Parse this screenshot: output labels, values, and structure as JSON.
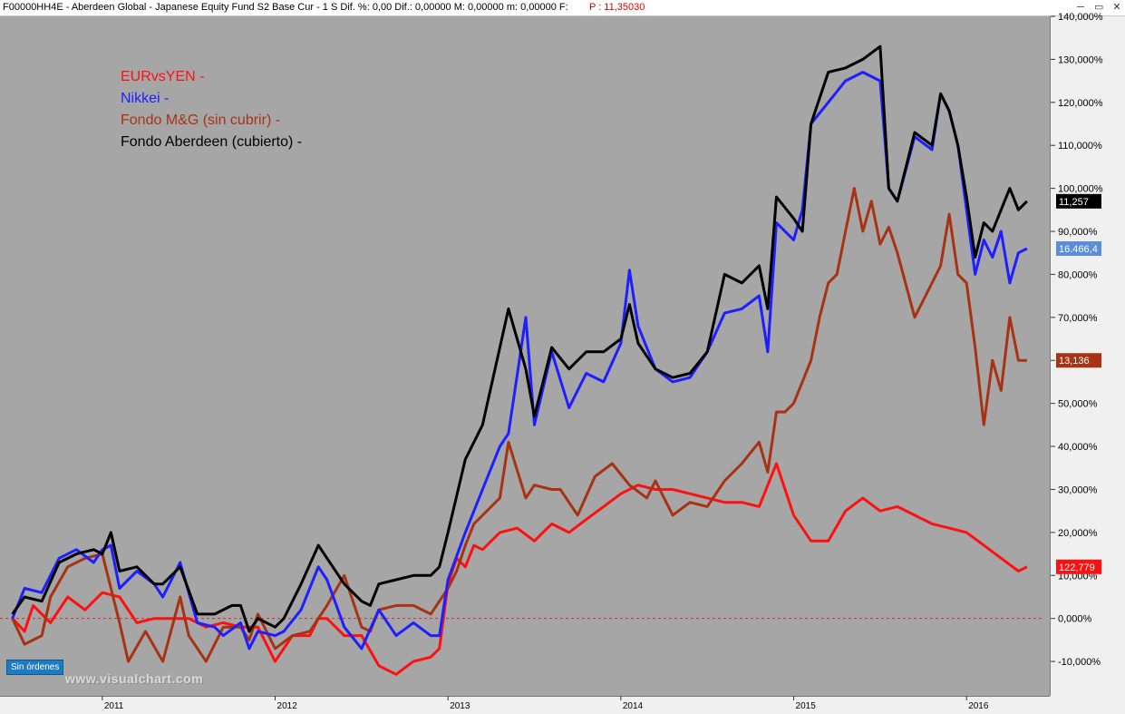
{
  "window": {
    "title": "F00000HH4E - Aberdeen Global - Japanese Equity Fund S2 Base Cur -  1 S  Dif. %: 0,00   Dif.: 0,00000   M: 0,00000   m: 0,00000   F:",
    "price_label": "P : 11,35030",
    "controls": [
      "─",
      "▭",
      "✕"
    ]
  },
  "chart_data": {
    "type": "line",
    "title": "",
    "xlabel": "",
    "ylabel": "",
    "ylim": [
      -18,
      140
    ],
    "y_ticks": [
      -10,
      0,
      10,
      20,
      30,
      40,
      50,
      60,
      70,
      80,
      90,
      100,
      110,
      120,
      130,
      140
    ],
    "y_tick_labels": [
      "-10,000%",
      "0,000%",
      "10,000%",
      "20,000%",
      "30,000%",
      "40,000%",
      "50,000%",
      "60,000%",
      "70,000%",
      "80,000%",
      "90,000%",
      "100,000%",
      "110,000%",
      "120,000%",
      "130,000%",
      "140,000%"
    ],
    "xlim": [
      2010.45,
      2016.45
    ],
    "x_ticks": [
      2011,
      2012,
      2013,
      2014,
      2015,
      2016
    ],
    "x_tick_labels": [
      "2011",
      "2012",
      "2013",
      "2014",
      "2015",
      "2016"
    ],
    "zero_line_color": "#d03030",
    "grid": false,
    "legend_position": "top-left",
    "series": [
      {
        "name": "EURvsYEN -",
        "color": "#ff1010",
        "end_label": "122,779",
        "points": [
          [
            2010.48,
            0
          ],
          [
            2010.55,
            -3
          ],
          [
            2010.6,
            3
          ],
          [
            2010.7,
            -1
          ],
          [
            2010.8,
            5
          ],
          [
            2010.9,
            2
          ],
          [
            2011.0,
            6
          ],
          [
            2011.1,
            5
          ],
          [
            2011.2,
            -1
          ],
          [
            2011.3,
            0
          ],
          [
            2011.4,
            0
          ],
          [
            2011.5,
            0
          ],
          [
            2011.6,
            -2
          ],
          [
            2011.7,
            -1
          ],
          [
            2011.8,
            -2
          ],
          [
            2011.9,
            -2
          ],
          [
            2012.0,
            -10
          ],
          [
            2012.1,
            -4
          ],
          [
            2012.2,
            -4
          ],
          [
            2012.25,
            0
          ],
          [
            2012.3,
            0
          ],
          [
            2012.4,
            -4
          ],
          [
            2012.5,
            -4
          ],
          [
            2012.6,
            -11
          ],
          [
            2012.7,
            -13
          ],
          [
            2012.8,
            -10
          ],
          [
            2012.9,
            -9
          ],
          [
            2012.95,
            -7
          ],
          [
            2013.0,
            8
          ],
          [
            2013.05,
            14
          ],
          [
            2013.1,
            12
          ],
          [
            2013.15,
            17
          ],
          [
            2013.2,
            16
          ],
          [
            2013.3,
            20
          ],
          [
            2013.4,
            21
          ],
          [
            2013.5,
            18
          ],
          [
            2013.6,
            22
          ],
          [
            2013.7,
            20
          ],
          [
            2013.8,
            23
          ],
          [
            2013.9,
            26
          ],
          [
            2014.0,
            29
          ],
          [
            2014.1,
            31
          ],
          [
            2014.2,
            30
          ],
          [
            2014.3,
            30
          ],
          [
            2014.4,
            29
          ],
          [
            2014.5,
            28
          ],
          [
            2014.6,
            27
          ],
          [
            2014.7,
            27
          ],
          [
            2014.8,
            26
          ],
          [
            2014.9,
            36
          ],
          [
            2015.0,
            24
          ],
          [
            2015.1,
            18
          ],
          [
            2015.2,
            18
          ],
          [
            2015.3,
            25
          ],
          [
            2015.4,
            28
          ],
          [
            2015.5,
            25
          ],
          [
            2015.6,
            26
          ],
          [
            2015.7,
            24
          ],
          [
            2015.8,
            22
          ],
          [
            2015.9,
            21
          ],
          [
            2016.0,
            20
          ],
          [
            2016.1,
            17
          ],
          [
            2016.2,
            14
          ],
          [
            2016.3,
            11
          ],
          [
            2016.35,
            12
          ]
        ]
      },
      {
        "name": "Nikkei -",
        "color": "#1e1eff",
        "end_label": "16.466,4",
        "points": [
          [
            2010.48,
            0
          ],
          [
            2010.55,
            7
          ],
          [
            2010.65,
            6
          ],
          [
            2010.75,
            14
          ],
          [
            2010.85,
            16
          ],
          [
            2010.95,
            13
          ],
          [
            2011.0,
            16
          ],
          [
            2011.05,
            17
          ],
          [
            2011.1,
            7
          ],
          [
            2011.2,
            11
          ],
          [
            2011.3,
            8
          ],
          [
            2011.35,
            5
          ],
          [
            2011.45,
            13
          ],
          [
            2011.55,
            -1
          ],
          [
            2011.65,
            -2
          ],
          [
            2011.7,
            -4
          ],
          [
            2011.8,
            -1
          ],
          [
            2011.85,
            -7
          ],
          [
            2011.9,
            -3
          ],
          [
            2012.0,
            -4
          ],
          [
            2012.05,
            -3
          ],
          [
            2012.15,
            2
          ],
          [
            2012.25,
            12
          ],
          [
            2012.3,
            9
          ],
          [
            2012.4,
            -2
          ],
          [
            2012.5,
            -7
          ],
          [
            2012.6,
            2
          ],
          [
            2012.7,
            -4
          ],
          [
            2012.8,
            -1
          ],
          [
            2012.9,
            -4
          ],
          [
            2012.95,
            -4
          ],
          [
            2013.0,
            9
          ],
          [
            2013.1,
            20
          ],
          [
            2013.2,
            30
          ],
          [
            2013.3,
            40
          ],
          [
            2013.35,
            43
          ],
          [
            2013.45,
            70
          ],
          [
            2013.5,
            45
          ],
          [
            2013.6,
            62
          ],
          [
            2013.7,
            49
          ],
          [
            2013.8,
            57
          ],
          [
            2013.9,
            55
          ],
          [
            2014.0,
            64
          ],
          [
            2014.05,
            81
          ],
          [
            2014.1,
            68
          ],
          [
            2014.2,
            58
          ],
          [
            2014.3,
            55
          ],
          [
            2014.4,
            56
          ],
          [
            2014.5,
            62
          ],
          [
            2014.6,
            71
          ],
          [
            2014.7,
            72
          ],
          [
            2014.8,
            75
          ],
          [
            2014.85,
            62
          ],
          [
            2014.9,
            92
          ],
          [
            2015.0,
            88
          ],
          [
            2015.05,
            95
          ],
          [
            2015.1,
            115
          ],
          [
            2015.2,
            120
          ],
          [
            2015.3,
            125
          ],
          [
            2015.4,
            127
          ],
          [
            2015.5,
            125
          ],
          [
            2015.55,
            100
          ],
          [
            2015.6,
            97
          ],
          [
            2015.7,
            112
          ],
          [
            2015.8,
            109
          ],
          [
            2015.85,
            122
          ],
          [
            2015.9,
            118
          ],
          [
            2015.95,
            110
          ],
          [
            2016.0,
            95
          ],
          [
            2016.05,
            80
          ],
          [
            2016.1,
            88
          ],
          [
            2016.15,
            84
          ],
          [
            2016.2,
            90
          ],
          [
            2016.25,
            78
          ],
          [
            2016.3,
            85
          ],
          [
            2016.35,
            86
          ]
        ]
      },
      {
        "name": "Fondo M&G (sin cubrir) -",
        "color": "#a83214",
        "end_label": "13,136",
        "points": [
          [
            2010.48,
            0
          ],
          [
            2010.55,
            -6
          ],
          [
            2010.65,
            -4
          ],
          [
            2010.7,
            5
          ],
          [
            2010.8,
            12
          ],
          [
            2010.9,
            14
          ],
          [
            2011.0,
            15
          ],
          [
            2011.1,
            -1
          ],
          [
            2011.15,
            -10
          ],
          [
            2011.25,
            -3
          ],
          [
            2011.35,
            -10
          ],
          [
            2011.45,
            5
          ],
          [
            2011.5,
            -4
          ],
          [
            2011.6,
            -10
          ],
          [
            2011.7,
            -2
          ],
          [
            2011.8,
            -2
          ],
          [
            2011.85,
            -5
          ],
          [
            2011.9,
            1
          ],
          [
            2012.0,
            -7
          ],
          [
            2012.1,
            -4
          ],
          [
            2012.2,
            -3
          ],
          [
            2012.3,
            3
          ],
          [
            2012.4,
            10
          ],
          [
            2012.5,
            -2
          ],
          [
            2012.55,
            -3
          ],
          [
            2012.6,
            2
          ],
          [
            2012.7,
            3
          ],
          [
            2012.8,
            3
          ],
          [
            2012.9,
            1
          ],
          [
            2013.0,
            7
          ],
          [
            2013.05,
            11
          ],
          [
            2013.1,
            17
          ],
          [
            2013.15,
            22
          ],
          [
            2013.3,
            28
          ],
          [
            2013.35,
            41
          ],
          [
            2013.45,
            28
          ],
          [
            2013.5,
            31
          ],
          [
            2013.6,
            30
          ],
          [
            2013.65,
            30
          ],
          [
            2013.75,
            24
          ],
          [
            2013.85,
            33
          ],
          [
            2013.95,
            36
          ],
          [
            2014.05,
            31
          ],
          [
            2014.15,
            28
          ],
          [
            2014.2,
            32
          ],
          [
            2014.3,
            24
          ],
          [
            2014.4,
            27
          ],
          [
            2014.5,
            26
          ],
          [
            2014.6,
            32
          ],
          [
            2014.7,
            36
          ],
          [
            2014.8,
            41
          ],
          [
            2014.85,
            34
          ],
          [
            2014.9,
            48
          ],
          [
            2014.95,
            48
          ],
          [
            2015.0,
            50
          ],
          [
            2015.05,
            55
          ],
          [
            2015.1,
            60
          ],
          [
            2015.15,
            70
          ],
          [
            2015.2,
            78
          ],
          [
            2015.25,
            80
          ],
          [
            2015.3,
            90
          ],
          [
            2015.35,
            100
          ],
          [
            2015.4,
            90
          ],
          [
            2015.45,
            97
          ],
          [
            2015.5,
            87
          ],
          [
            2015.55,
            91
          ],
          [
            2015.6,
            85
          ],
          [
            2015.7,
            70
          ],
          [
            2015.8,
            78
          ],
          [
            2015.85,
            82
          ],
          [
            2015.9,
            94
          ],
          [
            2015.95,
            80
          ],
          [
            2016.0,
            78
          ],
          [
            2016.05,
            63
          ],
          [
            2016.1,
            45
          ],
          [
            2016.15,
            60
          ],
          [
            2016.2,
            53
          ],
          [
            2016.25,
            70
          ],
          [
            2016.3,
            60
          ],
          [
            2016.35,
            60
          ]
        ]
      },
      {
        "name": "Fondo Aberdeen (cubierto) -",
        "color": "#000000",
        "end_label": "11,257",
        "points": [
          [
            2010.48,
            1
          ],
          [
            2010.55,
            5
          ],
          [
            2010.65,
            4
          ],
          [
            2010.75,
            13
          ],
          [
            2010.85,
            15
          ],
          [
            2010.95,
            16
          ],
          [
            2011.0,
            15
          ],
          [
            2011.05,
            20
          ],
          [
            2011.1,
            11
          ],
          [
            2011.2,
            12
          ],
          [
            2011.3,
            8
          ],
          [
            2011.35,
            8
          ],
          [
            2011.45,
            12
          ],
          [
            2011.55,
            1
          ],
          [
            2011.65,
            1
          ],
          [
            2011.75,
            3
          ],
          [
            2011.8,
            3
          ],
          [
            2011.85,
            -3
          ],
          [
            2011.9,
            0
          ],
          [
            2012.0,
            -2
          ],
          [
            2012.05,
            0
          ],
          [
            2012.15,
            8
          ],
          [
            2012.25,
            17
          ],
          [
            2012.3,
            14
          ],
          [
            2012.4,
            8
          ],
          [
            2012.5,
            4
          ],
          [
            2012.55,
            3
          ],
          [
            2012.6,
            8
          ],
          [
            2012.7,
            9
          ],
          [
            2012.8,
            10
          ],
          [
            2012.9,
            10
          ],
          [
            2012.95,
            12
          ],
          [
            2013.0,
            20
          ],
          [
            2013.1,
            37
          ],
          [
            2013.2,
            45
          ],
          [
            2013.3,
            63
          ],
          [
            2013.35,
            72
          ],
          [
            2013.45,
            58
          ],
          [
            2013.5,
            47
          ],
          [
            2013.6,
            63
          ],
          [
            2013.7,
            58
          ],
          [
            2013.8,
            62
          ],
          [
            2013.9,
            62
          ],
          [
            2014.0,
            65
          ],
          [
            2014.05,
            73
          ],
          [
            2014.1,
            64
          ],
          [
            2014.2,
            58
          ],
          [
            2014.3,
            56
          ],
          [
            2014.4,
            57
          ],
          [
            2014.5,
            62
          ],
          [
            2014.6,
            80
          ],
          [
            2014.7,
            78
          ],
          [
            2014.8,
            82
          ],
          [
            2014.85,
            72
          ],
          [
            2014.9,
            98
          ],
          [
            2015.0,
            93
          ],
          [
            2015.05,
            90
          ],
          [
            2015.1,
            115
          ],
          [
            2015.2,
            127
          ],
          [
            2015.3,
            128
          ],
          [
            2015.4,
            130
          ],
          [
            2015.5,
            133
          ],
          [
            2015.55,
            100
          ],
          [
            2015.6,
            97
          ],
          [
            2015.7,
            113
          ],
          [
            2015.8,
            110
          ],
          [
            2015.85,
            122
          ],
          [
            2015.9,
            118
          ],
          [
            2015.95,
            110
          ],
          [
            2016.0,
            98
          ],
          [
            2016.05,
            84
          ],
          [
            2016.1,
            92
          ],
          [
            2016.15,
            90
          ],
          [
            2016.2,
            95
          ],
          [
            2016.25,
            100
          ],
          [
            2016.3,
            95
          ],
          [
            2016.35,
            97
          ]
        ]
      }
    ]
  },
  "labels": {
    "orders_badge": "Sin órdenes",
    "watermark": "www.visualchart.com"
  }
}
